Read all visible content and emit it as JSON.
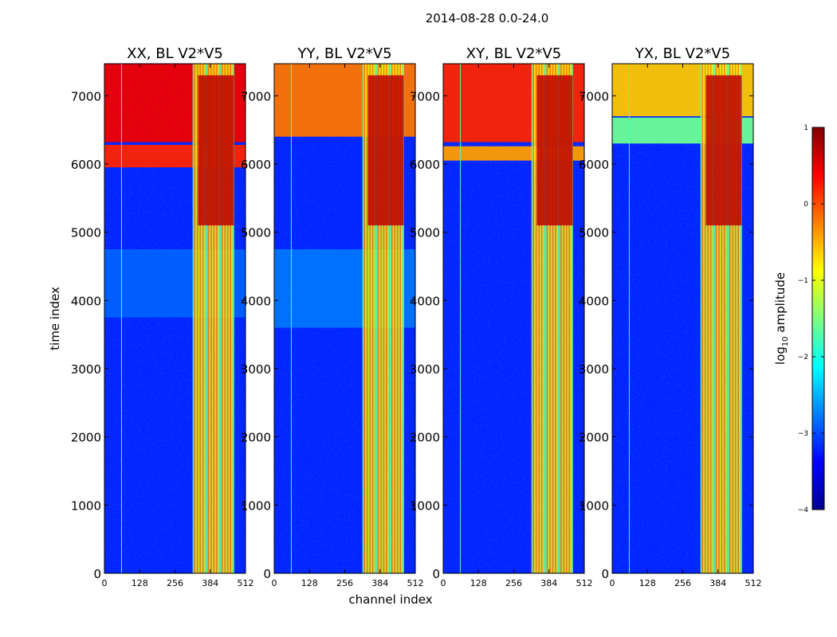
{
  "figure": {
    "suptitle": "2014-08-28 0.0-24.0",
    "xlabel": "channel index",
    "ylabel": "time index"
  },
  "chart_data": {
    "type": "heatmap",
    "x_ticks": [
      0,
      128,
      256,
      384,
      512
    ],
    "y_ticks": [
      0,
      1000,
      2000,
      3000,
      4000,
      5000,
      6000,
      7000
    ],
    "xlim": [
      0,
      512
    ],
    "ylim": [
      0,
      7470
    ],
    "colorbar": {
      "label_main": "log",
      "label_sub": "10",
      "label_rest": " amplitude",
      "range": [
        -4,
        1
      ],
      "ticks": [
        -4,
        -3,
        -2,
        -1,
        0,
        1
      ],
      "tick_labels": [
        "−4",
        "−3",
        "−2",
        "−1",
        "0",
        "1"
      ],
      "colormap": "jet"
    },
    "panels": [
      {
        "title": "XX, BL V2*V5",
        "bands": [
          {
            "x0": 0,
            "x1": 512,
            "y0": 6320,
            "y1": 7470,
            "level": 0.45
          },
          {
            "x0": 0,
            "x1": 512,
            "y0": 5950,
            "y1": 6280,
            "level": 0.2
          },
          {
            "x0": 0,
            "x1": 512,
            "y0": 3750,
            "y1": 4750,
            "level": -2.9
          }
        ]
      },
      {
        "title": "YY, BL V2*V5",
        "bands": [
          {
            "x0": 0,
            "x1": 512,
            "y0": 6400,
            "y1": 7470,
            "level": -0.2
          },
          {
            "x0": 0,
            "x1": 512,
            "y0": 3600,
            "y1": 4750,
            "level": -2.8
          }
        ]
      },
      {
        "title": "XY, BL V2*V5",
        "bands": [
          {
            "x0": 0,
            "x1": 512,
            "y0": 6320,
            "y1": 7470,
            "level": 0.2
          },
          {
            "x0": 0,
            "x1": 512,
            "y0": 6050,
            "y1": 6260,
            "level": -0.4
          }
        ]
      },
      {
        "title": "YX, BL V2*V5",
        "bands": [
          {
            "x0": 0,
            "x1": 512,
            "y0": 6700,
            "y1": 7470,
            "level": -0.6
          },
          {
            "x0": 0,
            "x1": 512,
            "y0": 6300,
            "y1": 6680,
            "level": -1.6
          }
        ]
      }
    ],
    "strong_channel_range": [
      320,
      470
    ],
    "saturated_time_range": [
      5100,
      7300
    ]
  }
}
